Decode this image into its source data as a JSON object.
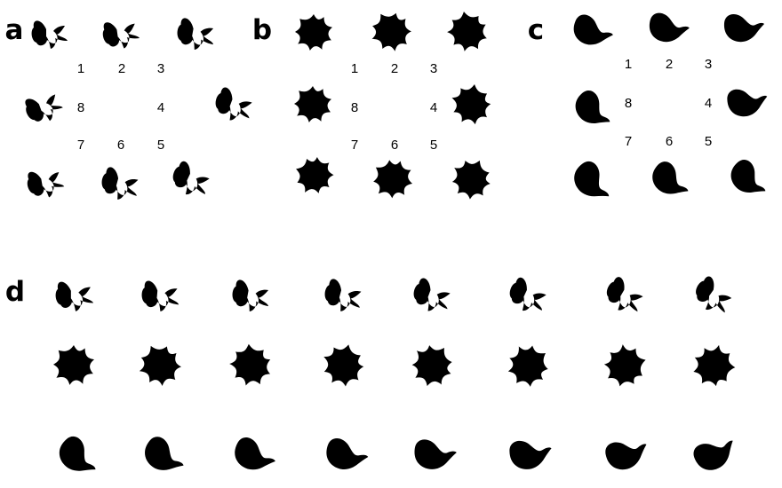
{
  "panels": [
    {
      "letter": "a",
      "shape_style": "wing",
      "position_labels": [
        "1",
        "2",
        "3",
        "4",
        "5",
        "6",
        "7",
        "8"
      ]
    },
    {
      "letter": "b",
      "shape_style": "star",
      "position_labels": [
        "1",
        "2",
        "3",
        "4",
        "5",
        "6",
        "7",
        "8"
      ]
    },
    {
      "letter": "c",
      "shape_style": "tail",
      "position_labels": [
        "1",
        "2",
        "3",
        "4",
        "5",
        "6",
        "7",
        "8"
      ]
    },
    {
      "letter": "d",
      "rows": [
        "wing",
        "star",
        "tail"
      ],
      "columns_per_row": 8
    }
  ],
  "colors": {
    "ink": "#000000",
    "background": "#ffffff"
  }
}
